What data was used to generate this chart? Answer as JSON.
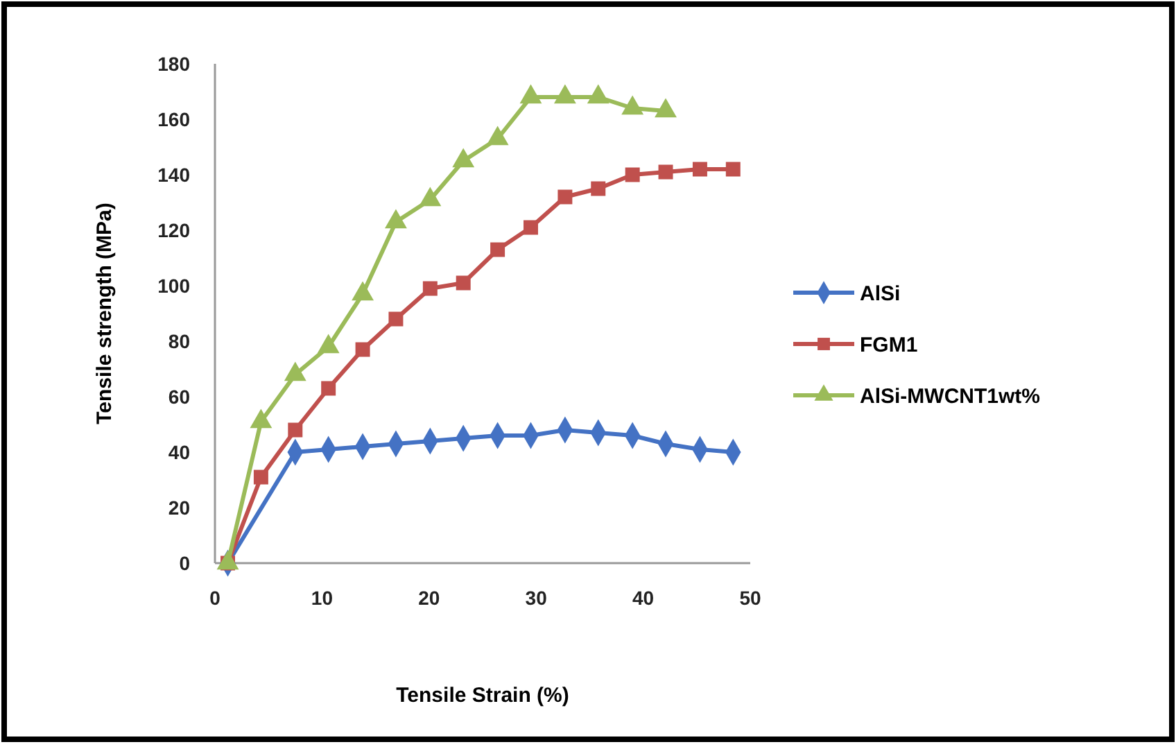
{
  "chart_data": {
    "type": "line",
    "xlabel": "Tensile Strain (%)",
    "ylabel": "Tensile strength (MPa)",
    "x": [
      1.2,
      4.3,
      7.5,
      10.6,
      13.8,
      16.9,
      20.1,
      23.2,
      26.4,
      29.5,
      32.7,
      35.8,
      39.0,
      42.1,
      45.3,
      48.4
    ],
    "xlim": [
      0,
      50
    ],
    "xticks": [
      0,
      10,
      20,
      30,
      40,
      50
    ],
    "ylim": [
      0,
      180
    ],
    "yticks": [
      0,
      20,
      40,
      60,
      80,
      100,
      120,
      140,
      160,
      180
    ],
    "grid": false,
    "legend": "right",
    "line_style": "solid",
    "series": [
      {
        "name": "AlSi",
        "color": "#4472c4",
        "marker": "diamond",
        "values": [
          0,
          null,
          40,
          41,
          42,
          43,
          44,
          45,
          46,
          46,
          48,
          47,
          46,
          43,
          41,
          40
        ]
      },
      {
        "name": "FGM1",
        "color": "#c0504d",
        "marker": "square",
        "values": [
          0,
          31,
          48,
          63,
          77,
          88,
          99,
          101,
          113,
          121,
          132,
          135,
          140,
          141,
          142,
          142
        ]
      },
      {
        "name": "AlSi-MWCNT1wt%",
        "color": "#9bbb59",
        "marker": "triangle",
        "x": [
          1.2,
          4.3,
          7.5,
          10.6,
          13.8,
          16.9,
          20.1,
          23.2,
          26.4,
          29.5,
          32.7,
          35.8,
          39.0,
          42.1
        ],
        "values": [
          0,
          51,
          68,
          78,
          97,
          123,
          131,
          145,
          153,
          168,
          168,
          168,
          164,
          163
        ]
      }
    ]
  }
}
